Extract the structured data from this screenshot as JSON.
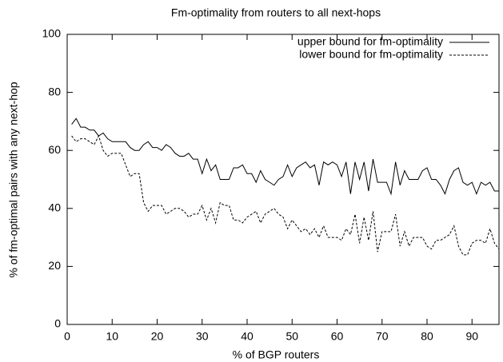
{
  "chart_data": {
    "type": "line",
    "title": "Fm-optimality from routers to all next-hops",
    "xlabel": "% of BGP routers",
    "ylabel": "% of fm-optimal pairs with any next-hop",
    "x": [
      1,
      2,
      3,
      4,
      5,
      6,
      7,
      8,
      9,
      10,
      11,
      12,
      13,
      14,
      15,
      16,
      17,
      18,
      19,
      20,
      21,
      22,
      23,
      24,
      25,
      26,
      27,
      28,
      29,
      30,
      31,
      32,
      33,
      34,
      35,
      36,
      37,
      38,
      39,
      40,
      41,
      42,
      43,
      44,
      45,
      46,
      47,
      48,
      49,
      50,
      51,
      52,
      53,
      54,
      55,
      56,
      57,
      58,
      59,
      60,
      61,
      62,
      63,
      64,
      65,
      66,
      67,
      68,
      69,
      70,
      71,
      72,
      73,
      74,
      75,
      76,
      77,
      78,
      79,
      80,
      81,
      82,
      83,
      84,
      85,
      86,
      87,
      88,
      89,
      90,
      91,
      92,
      93,
      94,
      95,
      96
    ],
    "series": [
      {
        "name": "upper bound for fm-optimality",
        "color": "#000000",
        "style": "solid",
        "values": [
          69,
          71,
          68,
          68,
          67,
          67,
          65,
          66,
          64,
          63,
          63,
          63,
          63,
          61,
          60,
          60,
          62,
          63,
          61,
          61,
          60,
          62,
          61,
          59,
          58,
          58,
          59,
          57,
          57,
          52,
          57,
          53,
          55,
          50,
          50,
          50,
          54,
          54,
          55,
          52,
          52,
          49,
          53,
          50,
          49,
          48,
          50,
          51,
          55,
          51,
          54,
          55,
          56,
          54,
          55,
          48,
          56,
          55,
          56,
          55,
          51,
          56,
          45,
          56,
          50,
          56,
          46,
          57,
          49,
          49,
          49,
          45,
          56,
          48,
          53,
          50,
          50,
          50,
          53,
          54,
          50,
          50,
          48,
          45,
          50,
          53,
          54,
          49,
          48,
          49,
          45,
          49,
          48,
          49,
          46,
          46
        ]
      },
      {
        "name": "lower bound for fm-optimality",
        "color": "#000000",
        "style": "dashed",
        "values": [
          65,
          63,
          64,
          64,
          63,
          62,
          65,
          60,
          58,
          59,
          59,
          59,
          55,
          51,
          52,
          52,
          42,
          39,
          41,
          41,
          41,
          38,
          39,
          40,
          40,
          39,
          37,
          38,
          38,
          41,
          36,
          40,
          35,
          42,
          41,
          41,
          36,
          36,
          35,
          37,
          38,
          39,
          35,
          38,
          39,
          40,
          38,
          37,
          33,
          36,
          34,
          32,
          33,
          31,
          33,
          30,
          34,
          30,
          30,
          30,
          29,
          33,
          31,
          38,
          28,
          37,
          29,
          39,
          25,
          32,
          32,
          32,
          38,
          27,
          32,
          27,
          30,
          30,
          30,
          27,
          26,
          29,
          29,
          30,
          31,
          34,
          27,
          24,
          24,
          28,
          29,
          29,
          28,
          33,
          28,
          26
        ]
      }
    ],
    "xlim": [
      0,
      96
    ],
    "xticks": [
      0,
      10,
      20,
      30,
      40,
      50,
      60,
      70,
      80,
      90
    ],
    "ylim": [
      0,
      100
    ],
    "yticks": [
      0,
      20,
      40,
      60,
      80,
      100
    ],
    "legend": "top-right"
  }
}
